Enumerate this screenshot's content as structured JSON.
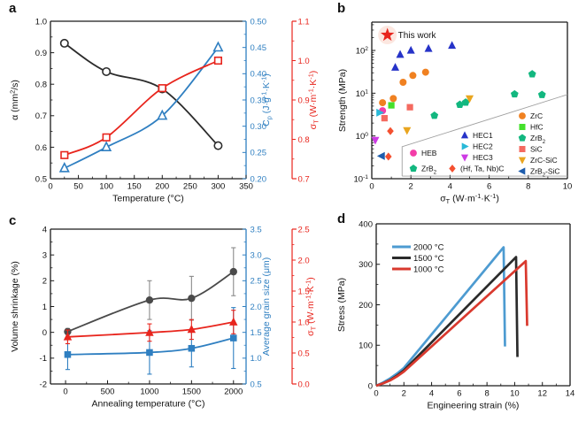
{
  "figure": {
    "background": "#ffffff"
  },
  "panels": {
    "a": {
      "label": "a"
    },
    "b": {
      "label": "b"
    },
    "c": {
      "label": "c"
    },
    "d": {
      "label": "d"
    }
  },
  "chart_data": [
    {
      "panel": "a",
      "type": "line",
      "x_axis": {
        "label": "Temperature (°C)",
        "lim": [
          0,
          350
        ],
        "ticks": [
          0,
          50,
          100,
          150,
          200,
          250,
          300,
          350
        ],
        "fmt": 0,
        "minor": 25
      },
      "y_left": {
        "label": "α (mm^{2}/s)",
        "lim": [
          0.5,
          1.0
        ],
        "ticks": [
          0.5,
          0.6,
          0.7,
          0.8,
          0.9,
          1.0
        ],
        "fmt": 1,
        "minor": 0.05,
        "color": "#1a1a1a"
      },
      "y_right": {
        "label": "C_{p} (J·g^{-1}·K^{-1})",
        "lim": [
          0.2,
          0.5
        ],
        "ticks": [
          0.2,
          0.25,
          0.3,
          0.35,
          0.4,
          0.45,
          0.5
        ],
        "fmt": 2,
        "minor": 0.025,
        "color": "#2f7fc1"
      },
      "y_far": {
        "label": "σ_{T} (W·m^{-1}·K^{-1})",
        "lim": [
          0.7,
          1.1
        ],
        "ticks": [
          0.7,
          0.8,
          0.9,
          1.0,
          1.1
        ],
        "fmt": 1,
        "minor": 0.05,
        "color": "#e8251d"
      },
      "series": [
        {
          "name": "thermal-diffusivity",
          "axis": "left",
          "marker": "circle",
          "open": true,
          "color": "#2b2b2b",
          "x": [
            25,
            100,
            200,
            300
          ],
          "y": [
            0.93,
            0.84,
            0.785,
            0.605
          ]
        },
        {
          "name": "specific-heat",
          "axis": "right",
          "marker": "triangle-up",
          "open": true,
          "color": "#2f7fc1",
          "x": [
            25,
            100,
            200,
            300
          ],
          "y": [
            0.22,
            0.26,
            0.32,
            0.45
          ]
        },
        {
          "name": "thermal-conductivity",
          "axis": "far",
          "marker": "square",
          "open": true,
          "color": "#e8251d",
          "x": [
            25,
            100,
            200,
            300
          ],
          "y": [
            0.76,
            0.805,
            0.93,
            1.0
          ]
        }
      ]
    },
    {
      "panel": "b",
      "type": "scatter",
      "x_axis": {
        "label": "σ_{T} (W·m^{-1}·K^{-1})",
        "lim": [
          0,
          10
        ],
        "ticks": [
          0,
          2,
          4,
          6,
          8,
          10
        ],
        "fmt": 0,
        "minor": 1
      },
      "y_left": {
        "label": "Strength (MPa)",
        "scale": "log",
        "lim": [
          0.1,
          460
        ],
        "ticks": [
          0.1,
          1,
          10,
          100
        ],
        "tick_labels": [
          "10^{-1}",
          "10^{0}",
          "10^{1}",
          "10^{2}"
        ],
        "color": "#1a1a1a"
      },
      "annotation": {
        "label": "This work",
        "marker": "star",
        "color": "#e8251d",
        "halo_color": "#fce7e0",
        "x": 0.8,
        "y": 230
      },
      "series": [
        {
          "name": "HEC1",
          "marker": "triangle-up",
          "color": "#2633c8",
          "points": [
            [
              1.2,
              40
            ],
            [
              1.45,
              80
            ],
            [
              2.0,
              100
            ],
            [
              2.9,
              110
            ],
            [
              4.1,
              130
            ]
          ]
        },
        {
          "name": "ZrC",
          "marker": "circle",
          "color": "#f08121",
          "points": [
            [
              0.55,
              6
            ],
            [
              1.1,
              7.5
            ],
            [
              1.6,
              18
            ],
            [
              2.1,
              26
            ],
            [
              2.75,
              31
            ]
          ]
        },
        {
          "name": "HfC",
          "marker": "square",
          "color": "#44e02b",
          "points": [
            [
              1.0,
              5.2
            ]
          ]
        },
        {
          "name": "ZrB2",
          "marker": "pentagon",
          "color": "#12b77f",
          "points": [
            [
              3.2,
              3.0
            ],
            [
              4.5,
              5.4
            ],
            [
              4.8,
              6.1
            ],
            [
              7.3,
              9.5
            ],
            [
              8.2,
              28
            ],
            [
              8.7,
              9.2
            ]
          ]
        },
        {
          "name": "SiC",
          "marker": "square",
          "color": "#f46a60",
          "points": [
            [
              0.65,
              2.6
            ],
            [
              1.95,
              4.7
            ]
          ]
        },
        {
          "name": "ZrC-SiC",
          "marker": "triangle-down",
          "color": "#e9a51f",
          "points": [
            [
              1.8,
              1.35
            ],
            [
              5.0,
              7.5
            ]
          ]
        },
        {
          "name": "ZrB2-SiC",
          "marker": "triangle-left",
          "color": "#1e5dad",
          "points": [
            [
              0.5,
              0.34
            ]
          ]
        },
        {
          "name": "HEB",
          "marker": "circle",
          "color": "#f33da8",
          "points": [
            [
              0.55,
              3.9
            ]
          ]
        },
        {
          "name": "HEC2",
          "marker": "triangle-right",
          "color": "#29b9d8",
          "points": [
            [
              0.4,
              3.5
            ]
          ]
        },
        {
          "name": "HEC3",
          "marker": "triangle-down",
          "color": "#cd3be4",
          "points": [
            [
              0.18,
              0.8
            ]
          ]
        },
        {
          "name": "HfTaNbC",
          "marker": "diamond",
          "color": "#f45030",
          "points": [
            [
              0.95,
              1.3
            ],
            [
              0.85,
              0.33
            ]
          ]
        }
      ],
      "region_outline": [
        [
          [
            1.55,
            0.115
          ],
          [
            1.55,
            0.56
          ],
          [
            10,
            9.3
          ]
        ],
        [
          [
            1.55,
            0.115
          ],
          [
            10,
            0.115
          ]
        ]
      ],
      "legend": {
        "entries": [
          {
            "label": "HEB",
            "marker": "circle",
            "color": "#f33da8",
            "x": 467,
            "y": 173
          },
          {
            "label": "ZrB_{2}",
            "marker": "pentagon",
            "color": "#12b77f",
            "x": 467,
            "y": 190.5
          },
          {
            "label": "HEC1",
            "marker": "triangle-up",
            "color": "#2633c8",
            "x": 525,
            "y": 153
          },
          {
            "label": "HEC2",
            "marker": "triangle-right",
            "color": "#29b9d8",
            "x": 525,
            "y": 165.5
          },
          {
            "label": "HEC3",
            "marker": "triangle-down",
            "color": "#cd3be4",
            "x": 525,
            "y": 178
          },
          {
            "label": "(Hf, Ta, Nb)C",
            "marker": "diamond",
            "color": "#f45030",
            "x": 511,
            "y": 190.5
          },
          {
            "label": "ZrC",
            "marker": "circle",
            "color": "#f08121",
            "x": 590,
            "y": 131
          },
          {
            "label": "HfC",
            "marker": "square",
            "color": "#44e02b",
            "x": 590,
            "y": 143.5
          },
          {
            "label": "ZrB_{2}",
            "marker": "pentagon",
            "color": "#12b77f",
            "x": 590,
            "y": 156
          },
          {
            "label": "SiC",
            "marker": "square",
            "color": "#f46a60",
            "x": 590,
            "y": 168.5
          },
          {
            "label": "ZrC-SiC",
            "marker": "triangle-down",
            "color": "#e9a51f",
            "x": 590,
            "y": 181
          },
          {
            "label": "ZrB_{2}-SiC",
            "marker": "triangle-left",
            "color": "#1e5dad",
            "x": 590,
            "y": 193.5
          }
        ]
      }
    },
    {
      "panel": "c",
      "type": "line",
      "x_axis": {
        "label": "Annealing temperature (°C)",
        "lim": [
          -180,
          2150
        ],
        "ticks": [
          0,
          500,
          1000,
          1500,
          2000
        ],
        "fmt": 0,
        "minor": 250
      },
      "y_left": {
        "label": "Volume shrinkage (%)",
        "lim": [
          -2,
          4
        ],
        "ticks": [
          -2,
          -1,
          0,
          1,
          2,
          3,
          4
        ],
        "fmt": 0,
        "minor": 0.5,
        "color": "#1a1a1a"
      },
      "y_right": {
        "label": "Average grain size (μm)",
        "lim": [
          0.5,
          3.5
        ],
        "ticks": [
          0.5,
          1.0,
          1.5,
          2.0,
          2.5,
          3.0,
          3.5
        ],
        "fmt": 1,
        "minor": 0.25,
        "color": "#2f7fc1"
      },
      "y_far": {
        "label": "σ_{T} (W·m^{-1}·K^{-1})",
        "lim": [
          0.0,
          2.5
        ],
        "ticks": [
          0.0,
          0.5,
          1.0,
          1.5,
          2.0,
          2.5
        ],
        "fmt": 1,
        "minor": 0.25,
        "color": "#e8251d"
      },
      "series": [
        {
          "name": "volume-shrinkage",
          "axis": "left",
          "marker": "circle",
          "open": false,
          "color": "#4a4a4a",
          "err_color": "#8a8a8a",
          "x": [
            25,
            1000,
            1500,
            2000
          ],
          "y": [
            0.03,
            1.25,
            1.32,
            2.35
          ],
          "err": [
            0.12,
            0.75,
            0.85,
            0.93
          ]
        },
        {
          "name": "grain-size",
          "axis": "right",
          "marker": "square",
          "open": false,
          "color": "#2f7fc1",
          "x": [
            25,
            1000,
            1500,
            2000
          ],
          "y": [
            1.07,
            1.11,
            1.19,
            1.39
          ],
          "err": [
            0.29,
            0.42,
            0.36,
            0.59
          ]
        },
        {
          "name": "thermal-conductivity",
          "axis": "far",
          "marker": "triangle-up",
          "open": false,
          "color": "#e8251d",
          "x": [
            25,
            1000,
            1500,
            2000
          ],
          "y": [
            0.76,
            0.83,
            0.88,
            1.0
          ],
          "err": [
            0.11,
            0.14,
            0.16,
            0.19
          ]
        }
      ]
    },
    {
      "panel": "d",
      "type": "line",
      "x_axis": {
        "label": "Engineering strain (%)",
        "lim": [
          0,
          14
        ],
        "ticks": [
          0,
          2,
          4,
          6,
          8,
          10,
          12,
          14
        ],
        "fmt": 0,
        "minor": 1
      },
      "y_left": {
        "label": "Stress (MPa)",
        "lim": [
          0,
          400
        ],
        "ticks": [
          0,
          100,
          200,
          300,
          400
        ],
        "fmt": 0,
        "minor": 50,
        "color": "#1a1a1a"
      },
      "legend": {
        "entries": [
          {
            "label": "2000 °C",
            "color": "#4d9bd1"
          },
          {
            "label": "1500 °C",
            "color": "#2b2b2b"
          },
          {
            "label": "1000 °C",
            "color": "#d9392e"
          }
        ]
      },
      "series": [
        {
          "name": "stress-strain-2000C",
          "color": "#4d9bd1",
          "points": [
            [
              0,
              0
            ],
            [
              0.5,
              8
            ],
            [
              1,
              18
            ],
            [
              1.5,
              30
            ],
            [
              2,
              44
            ],
            [
              9.2,
              342
            ],
            [
              9.3,
              97
            ]
          ]
        },
        {
          "name": "stress-strain-1500C",
          "color": "#2b2b2b",
          "points": [
            [
              0,
              0
            ],
            [
              0.5,
              6
            ],
            [
              1,
              14
            ],
            [
              1.5,
              25
            ],
            [
              2,
              38
            ],
            [
              10.1,
              318
            ],
            [
              10.2,
              71
            ]
          ]
        },
        {
          "name": "stress-strain-1000C",
          "color": "#d9392e",
          "points": [
            [
              0,
              0
            ],
            [
              0.5,
              6
            ],
            [
              1,
              13
            ],
            [
              1.5,
              23
            ],
            [
              2,
              35
            ],
            [
              10.8,
              308
            ],
            [
              10.9,
              148
            ]
          ]
        }
      ]
    }
  ]
}
